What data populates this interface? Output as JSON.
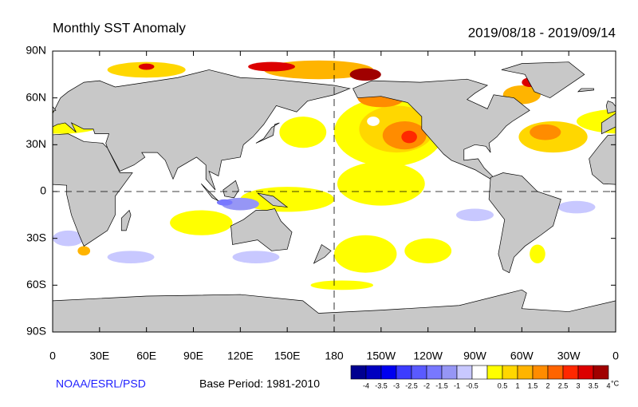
{
  "header": {
    "title": "Monthly SST Anomaly",
    "period": "2019/08/18 - 2019/09/14"
  },
  "map": {
    "lat_labels": [
      "90N",
      "60N",
      "30N",
      "0",
      "30S",
      "60S",
      "90S"
    ],
    "lon_labels": [
      "0",
      "30E",
      "60E",
      "90E",
      "120E",
      "150E",
      "180",
      "150W",
      "120W",
      "90W",
      "60W",
      "30W",
      "0"
    ]
  },
  "footer": {
    "credit": "NOAA/ESRL/PSD",
    "base_period": "Base Period: 1981-2010"
  },
  "colorbar": {
    "labels": [
      "-4",
      "-3.5",
      "-3",
      "-2.5",
      "-2",
      "-1.5",
      "-1",
      "-0.5",
      "0.5",
      "1",
      "1.5",
      "2",
      "2.5",
      "3",
      "3.5",
      "4"
    ],
    "unit": "°C",
    "colors": [
      "#000090",
      "#0000c0",
      "#0000f0",
      "#3c3cff",
      "#5a5aff",
      "#7878ff",
      "#9696f5",
      "#c8c8ff",
      "#ffffff",
      "#ffff00",
      "#ffd700",
      "#ffb400",
      "#ff8c00",
      "#ff6400",
      "#ff2800",
      "#dc0000",
      "#a00000"
    ]
  }
}
